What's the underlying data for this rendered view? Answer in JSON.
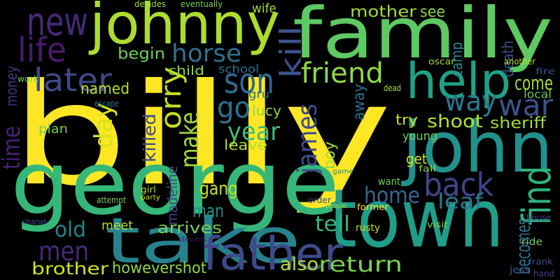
{
  "words": [
    "billy",
    "george",
    "family",
    "johnny",
    "town",
    "john",
    "take",
    "father",
    "help",
    "new",
    "life",
    "later",
    "kill",
    "horse",
    "son",
    "friend",
    "way",
    "war",
    "go",
    "orry",
    "make",
    "year",
    "james",
    "day",
    "time",
    "money",
    "back",
    "find",
    "becomes",
    "home",
    "leaf",
    "come",
    "death",
    "shoot",
    "sheriff",
    "mother",
    "see",
    "camp",
    "begin",
    "child",
    "named",
    "school",
    "killed",
    "lucy",
    "leave",
    "boy",
    "away",
    "try",
    "young",
    "get",
    "plan",
    "gang",
    "madeline",
    "man",
    "meet",
    "arrives",
    "old",
    "men",
    "brother",
    "howevershot",
    "also",
    "return",
    "tell",
    "want",
    "rusty",
    "jess",
    "ride",
    "visit",
    "house",
    "fall",
    "game",
    "dead",
    "work",
    "escape",
    "wife",
    "eventually",
    "decides",
    "oscar",
    "another",
    "fire",
    "local",
    "gru",
    "attempt",
    "girl",
    "party",
    "charge",
    "stevens",
    "order",
    "former",
    "people",
    "frank",
    "hand"
  ]
}
